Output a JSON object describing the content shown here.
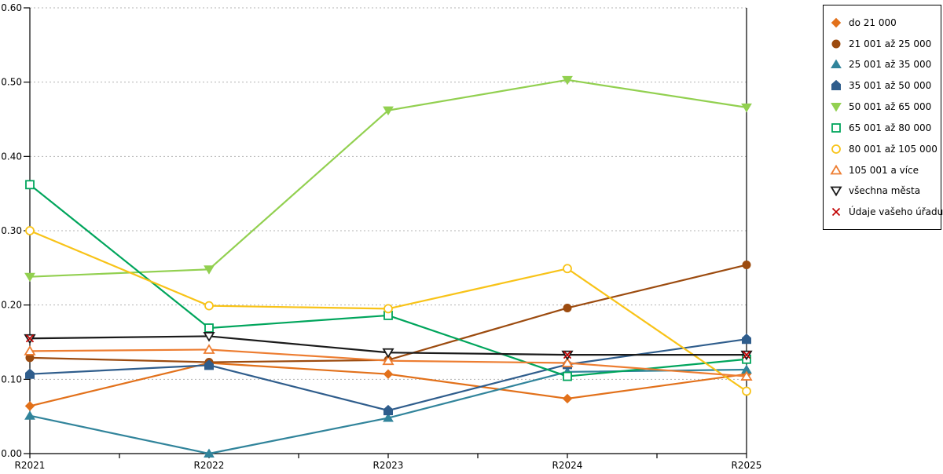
{
  "chart_data": {
    "type": "line",
    "x": [
      "R2021",
      "R2022",
      "R2023",
      "R2024",
      "R2025"
    ],
    "ylim": [
      0,
      0.6
    ],
    "ytick_labels": [
      "0.00",
      "0.10",
      "0.20",
      "0.30",
      "0.40",
      "0.50",
      "0.60"
    ],
    "grid": "horizontal-dotted",
    "grid_color": "#b3b3b3",
    "axis_color": "#000000",
    "background": "#ffffff",
    "legend_position": "right-outside",
    "series": [
      {
        "name": "do 21 000",
        "color": "#E2711B",
        "marker": "diamond",
        "fill": true,
        "values": [
          0.064,
          0.122,
          0.107,
          0.074,
          0.107
        ]
      },
      {
        "name": "21 001 až 25 000",
        "color": "#9C4B0F",
        "marker": "circle",
        "fill": true,
        "values": [
          0.129,
          0.123,
          0.126,
          0.196,
          0.254
        ]
      },
      {
        "name": "25 001 až 35 000",
        "color": "#31849B",
        "marker": "triangle-up",
        "fill": true,
        "values": [
          0.051,
          0.0,
          0.048,
          0.11,
          0.113
        ]
      },
      {
        "name": "35 001 až 50 000",
        "color": "#2F5D8C",
        "marker": "pentagon",
        "fill": true,
        "values": [
          0.107,
          0.119,
          0.058,
          0.12,
          0.154
        ]
      },
      {
        "name": "50 001 až 65 000",
        "color": "#92D050",
        "marker": "triangle-down",
        "fill": true,
        "values": [
          0.238,
          0.248,
          0.462,
          0.503,
          0.466
        ]
      },
      {
        "name": "65 001 až 80 000",
        "color": "#00A55C",
        "marker": "square",
        "fill": false,
        "values": [
          0.362,
          0.169,
          0.186,
          0.104,
          0.127
        ]
      },
      {
        "name": "80 001 až 105 000",
        "color": "#F8C318",
        "marker": "circle",
        "fill": false,
        "values": [
          0.3,
          0.199,
          0.195,
          0.249,
          0.084
        ]
      },
      {
        "name": "105 001 a více",
        "color": "#ED7D31",
        "marker": "triangle-up",
        "fill": false,
        "values": [
          0.138,
          0.14,
          0.125,
          0.122,
          0.104
        ]
      },
      {
        "name": "všechna města",
        "color": "#1A1A1A",
        "marker": "triangle-down",
        "fill": false,
        "values": [
          0.155,
          0.158,
          0.136,
          0.133,
          0.133
        ]
      },
      {
        "name": "Údaje vašeho úřadu",
        "color": "#C00000",
        "marker": "x",
        "fill": false,
        "line": false,
        "values": [
          0.155,
          null,
          null,
          0.133,
          0.133
        ]
      }
    ]
  }
}
